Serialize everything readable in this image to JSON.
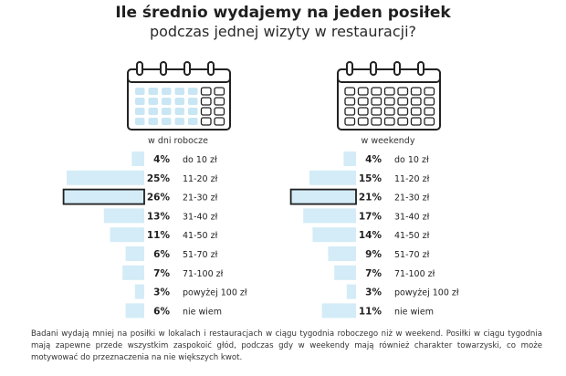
{
  "title": "Ile średnio wydajemy na jeden posiłek",
  "subtitle": "podczas jednej wizyty w restauracji?",
  "icons": {
    "left": "calendar-icon",
    "right": "calendar-icon"
  },
  "colors": {
    "bar": "#d3ecf7",
    "highlight_border": "#1f1f1f",
    "text": "#222222",
    "calendar_fill": "#c9e6f4"
  },
  "chart_data": [
    {
      "type": "bar",
      "orientation": "horizontal",
      "title": "w dni robocze",
      "categories": [
        "do 10 zł",
        "11-20 zł",
        "21-30 zł",
        "31-40 zł",
        "41-50 zł",
        "51-70 zł",
        "71-100 zł",
        "powyżej 100 zł",
        "nie wiem"
      ],
      "values": [
        4,
        25,
        26,
        13,
        11,
        6,
        7,
        3,
        6
      ],
      "value_labels": [
        "4%",
        "25%",
        "26%",
        "13%",
        "11%",
        "6%",
        "7%",
        "3%",
        "6%"
      ],
      "highlight_index": 2
    },
    {
      "type": "bar",
      "orientation": "horizontal",
      "title": "w weekendy",
      "categories": [
        "do 10 zł",
        "11-20 zł",
        "21-30 zł",
        "31-40 zł",
        "41-50 zł",
        "51-70 zł",
        "71-100 zł",
        "powyżej 100 zł",
        "nie wiem"
      ],
      "values": [
        4,
        15,
        21,
        17,
        14,
        9,
        7,
        3,
        11
      ],
      "value_labels": [
        "4%",
        "15%",
        "21%",
        "17%",
        "14%",
        "9%",
        "7%",
        "3%",
        "11%"
      ],
      "highlight_index": 2
    }
  ],
  "footnote": "Badani wydają mniej na posiłki w lokalach i restauracjach w ciągu tygodnia roboczego niż w weekend. Posiłki w ciągu tygodnia mają zapewne przede wszystkim zaspokoić głód, podczas gdy w weekendy mają również charakter towarzyski, co może motywować do przeznaczenia na nie większych kwot."
}
